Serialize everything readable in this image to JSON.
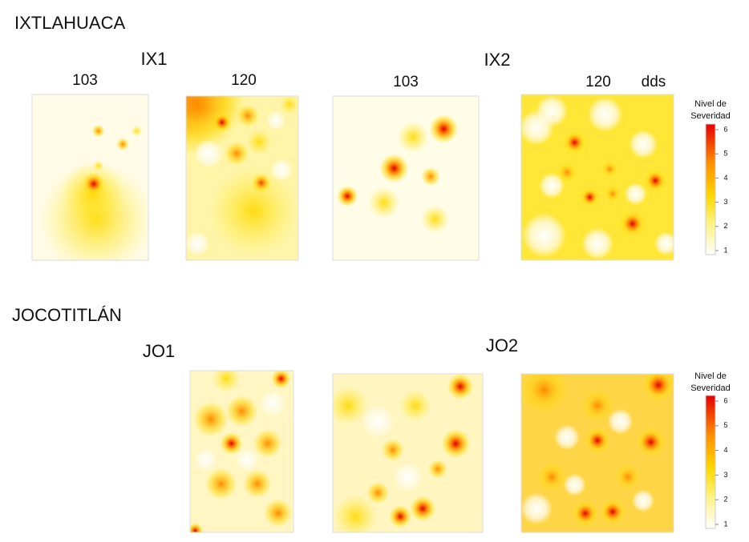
{
  "regions": [
    {
      "name": "IXTLAHUACA",
      "sites": [
        {
          "label": "IX1",
          "days": [
            103,
            120
          ]
        },
        {
          "label": "IX2",
          "days": [
            103,
            120
          ],
          "unit": "dds"
        }
      ]
    },
    {
      "name": "JOCOTITLÁN",
      "sites": [
        {
          "label": "JO1"
        },
        {
          "label": "JO2"
        }
      ]
    }
  ],
  "colorbars": [
    {
      "title": [
        "Nivel de",
        "Severidad"
      ],
      "range": [
        1,
        6
      ],
      "ticks": [
        1,
        2,
        3,
        4,
        5,
        6
      ]
    },
    {
      "title": [
        "Nivel de",
        "Severidad"
      ],
      "range": [
        1,
        6
      ],
      "ticks": [
        1,
        2,
        3,
        4,
        5,
        6
      ]
    }
  ]
}
